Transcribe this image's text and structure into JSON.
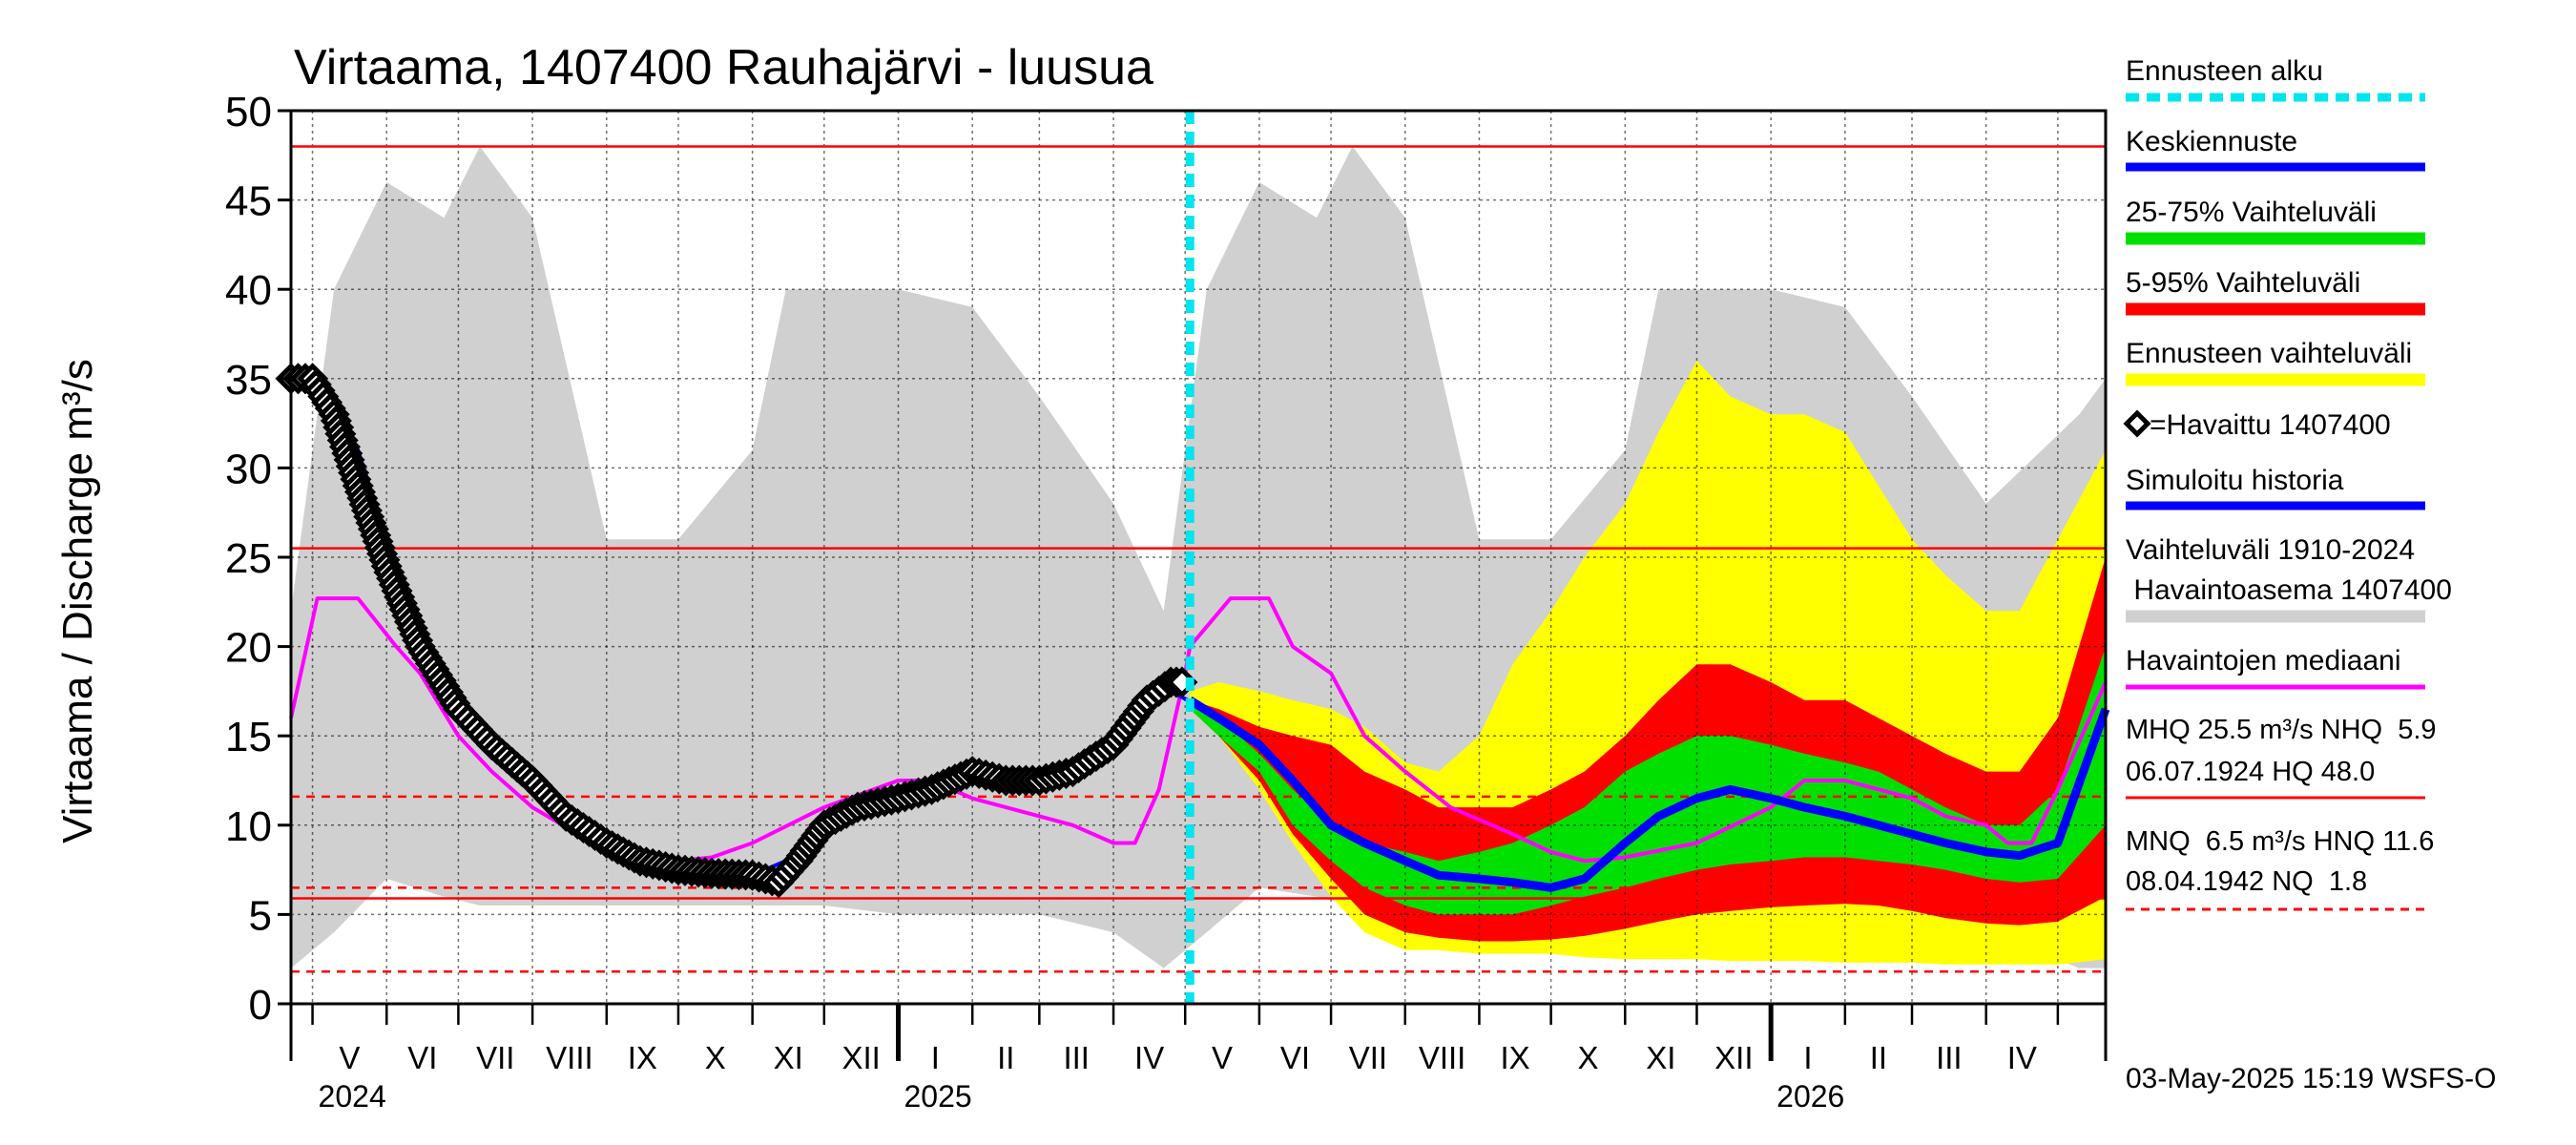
{
  "chart_data": {
    "type": "area",
    "title": "Virtaama, 1407400 Rauhajärvi - luusua",
    "ylabel": "Virtaama / Discharge   m³/s",
    "ylim": [
      0,
      50
    ],
    "yticks": [
      0,
      5,
      10,
      15,
      20,
      25,
      30,
      35,
      40,
      45,
      50
    ],
    "xlim": [
      "2024-04-22",
      "2026-05-21"
    ],
    "forecast_start": "2025-05-03",
    "months": [
      {
        "label": "V",
        "start": "2024-05-01"
      },
      {
        "label": "VI",
        "start": "2024-06-01"
      },
      {
        "label": "VII",
        "start": "2024-07-01"
      },
      {
        "label": "VIII",
        "start": "2024-08-01"
      },
      {
        "label": "IX",
        "start": "2024-09-01"
      },
      {
        "label": "X",
        "start": "2024-10-01"
      },
      {
        "label": "XI",
        "start": "2024-11-01"
      },
      {
        "label": "XII",
        "start": "2024-12-01"
      },
      {
        "label": "I",
        "start": "2025-01-01"
      },
      {
        "label": "II",
        "start": "2025-02-01"
      },
      {
        "label": "III",
        "start": "2025-03-01"
      },
      {
        "label": "IV",
        "start": "2025-04-01"
      },
      {
        "label": "V",
        "start": "2025-05-01"
      },
      {
        "label": "VI",
        "start": "2025-06-01"
      },
      {
        "label": "VII",
        "start": "2025-07-01"
      },
      {
        "label": "VIII",
        "start": "2025-08-01"
      },
      {
        "label": "IX",
        "start": "2025-09-01"
      },
      {
        "label": "X",
        "start": "2025-10-01"
      },
      {
        "label": "XI",
        "start": "2025-11-01"
      },
      {
        "label": "XII",
        "start": "2025-12-01"
      },
      {
        "label": "I",
        "start": "2026-01-01"
      },
      {
        "label": "II",
        "start": "2026-02-01"
      },
      {
        "label": "III",
        "start": "2026-03-01"
      },
      {
        "label": "IV",
        "start": "2026-04-01"
      },
      {
        "label": "",
        "start": "2026-05-01"
      }
    ],
    "years": [
      {
        "label": "2024",
        "date": "2024-05-01"
      },
      {
        "label": "2025",
        "date": "2025-01-01"
      },
      {
        "label": "2026",
        "date": "2026-01-01"
      }
    ],
    "reference_lines": [
      {
        "name": "HQ",
        "value": 48.0,
        "style": "solid"
      },
      {
        "name": "MHQ",
        "value": 25.5,
        "style": "solid"
      },
      {
        "name": "HNQ",
        "value": 11.6,
        "style": "dashed"
      },
      {
        "name": "MNQ",
        "value": 6.5,
        "style": "dashed"
      },
      {
        "name": "NHQ",
        "value": 5.9,
        "style": "solid"
      },
      {
        "name": "NQ",
        "value": 1.8,
        "style": "dashed"
      }
    ],
    "historical_range": {
      "x": [
        "2024-04-22",
        "2024-05-10",
        "2024-06-01",
        "2024-06-25",
        "2024-07-10",
        "2024-08-01",
        "2024-08-20",
        "2024-09-01",
        "2024-10-01",
        "2024-11-01",
        "2024-11-15",
        "2024-12-01",
        "2025-01-01",
        "2025-02-01",
        "2025-03-01",
        "2025-04-01",
        "2025-04-22",
        "2025-05-10",
        "2025-06-01",
        "2025-06-25",
        "2025-07-10",
        "2025-08-01",
        "2025-08-20",
        "2025-09-01",
        "2025-10-01",
        "2025-11-01",
        "2025-11-15",
        "2025-12-01",
        "2026-01-01",
        "2026-02-01",
        "2026-03-01",
        "2026-04-01",
        "2026-05-10",
        "2026-05-21"
      ],
      "upper": [
        22,
        40,
        46,
        44,
        48,
        44,
        33,
        26,
        26,
        31,
        40,
        40,
        40,
        39,
        34,
        28,
        22,
        40,
        46,
        44,
        48,
        44,
        33,
        26,
        26,
        31,
        40,
        40,
        40,
        39,
        34,
        28,
        33,
        35
      ],
      "lower": [
        2,
        4,
        7,
        6,
        5.5,
        5.5,
        5.5,
        5.5,
        5.5,
        5.5,
        5.5,
        5.5,
        5,
        5,
        5,
        4,
        2,
        4,
        6.5,
        6,
        5.5,
        5.5,
        5.5,
        5.5,
        5.5,
        5.5,
        5.5,
        5.5,
        5,
        5,
        5,
        4,
        2,
        2
      ]
    },
    "observed": {
      "name": "=Havaittu 1407400",
      "x": [
        "2024-04-22",
        "2024-05-01",
        "2024-05-10",
        "2024-05-20",
        "2024-06-01",
        "2024-06-15",
        "2024-07-01",
        "2024-07-15",
        "2024-08-01",
        "2024-08-15",
        "2024-09-01",
        "2024-09-15",
        "2024-10-01",
        "2024-10-15",
        "2024-11-01",
        "2024-11-12",
        "2024-11-20",
        "2024-12-01",
        "2024-12-15",
        "2025-01-01",
        "2025-01-15",
        "2025-02-01",
        "2025-02-15",
        "2025-03-01",
        "2025-03-15",
        "2025-04-01",
        "2025-04-15",
        "2025-04-25",
        "2025-05-02"
      ],
      "values": [
        35,
        35,
        33,
        29,
        24.5,
        20,
        16.5,
        14.5,
        12.5,
        10.5,
        9,
        8,
        7.5,
        7.3,
        7.2,
        6.8,
        8,
        10,
        11,
        11.5,
        12,
        13,
        12.5,
        12.5,
        13,
        14.5,
        17,
        18,
        18
      ]
    },
    "median": {
      "name": "Havaintojen mediaani",
      "x": [
        "2024-04-22",
        "2024-05-03",
        "2024-05-20",
        "2024-06-05",
        "2024-06-15",
        "2024-07-01",
        "2024-07-15",
        "2024-08-01",
        "2024-08-20",
        "2024-09-15",
        "2024-10-01",
        "2024-10-15",
        "2024-11-01",
        "2024-12-01",
        "2025-01-01",
        "2025-01-15",
        "2025-02-01",
        "2025-03-01",
        "2025-03-15",
        "2025-04-01",
        "2025-04-10",
        "2025-04-20",
        "2025-05-01",
        "2025-05-03",
        "2025-05-20",
        "2025-06-05",
        "2025-06-15",
        "2025-07-01",
        "2025-07-15",
        "2025-08-01",
        "2025-08-20",
        "2025-09-15",
        "2025-10-01",
        "2025-10-15",
        "2025-11-01",
        "2025-12-01",
        "2026-01-01",
        "2026-01-15",
        "2026-02-01",
        "2026-03-01",
        "2026-03-15",
        "2026-04-01",
        "2026-04-10",
        "2026-04-20",
        "2026-05-01",
        "2026-05-21"
      ],
      "values": [
        16,
        22.7,
        22.7,
        20,
        18.5,
        15,
        13,
        11,
        9.5,
        8.5,
        8,
        8.2,
        9,
        11,
        12.5,
        12.5,
        11.5,
        10.5,
        10,
        9,
        9,
        12,
        18.5,
        20,
        22.7,
        22.7,
        20,
        18.5,
        15,
        13,
        11,
        9.5,
        8.5,
        8,
        8.2,
        9,
        11,
        12.5,
        12.5,
        11.5,
        10.5,
        10,
        9,
        9,
        12,
        18
      ]
    },
    "forecast_x": [
      "2025-05-03",
      "2025-05-15",
      "2025-06-01",
      "2025-06-15",
      "2025-07-01",
      "2025-07-15",
      "2025-08-01",
      "2025-08-15",
      "2025-09-01",
      "2025-09-15",
      "2025-10-01",
      "2025-10-15",
      "2025-11-01",
      "2025-11-15",
      "2025-12-01",
      "2025-12-15",
      "2026-01-01",
      "2026-01-15",
      "2026-02-01",
      "2026-02-15",
      "2026-03-01",
      "2026-03-15",
      "2026-04-01",
      "2026-04-15",
      "2026-05-01",
      "2026-05-21"
    ],
    "forecast_range": {
      "name": "Ennusteen vaihteluväli",
      "upper": [
        17.5,
        18,
        17.5,
        17,
        16.5,
        15.5,
        13.5,
        13,
        15,
        19,
        22,
        25,
        28,
        32,
        36,
        34,
        33,
        33,
        32,
        29,
        26,
        24,
        22,
        22,
        26,
        31
      ],
      "lower": [
        16.5,
        15,
        12,
        9,
        6,
        4,
        3,
        3,
        2.8,
        2.8,
        2.8,
        2.6,
        2.5,
        2.5,
        2.5,
        2.4,
        2.4,
        2.4,
        2.3,
        2.3,
        2.3,
        2.2,
        2.2,
        2.2,
        2.2,
        2.5
      ]
    },
    "p5_95": {
      "name": "5-95% Vaihteluväli",
      "upper": [
        17,
        16.5,
        15.5,
        15,
        14.5,
        13,
        12,
        11,
        11,
        11,
        12,
        13,
        15,
        17,
        19,
        19,
        18,
        17,
        17,
        16,
        15,
        14,
        13,
        13,
        16,
        25
      ]
    },
    "p5_95_lower": [
      16.5,
      15,
      12.5,
      9.5,
      7,
      5,
      4,
      3.7,
      3.5,
      3.5,
      3.6,
      3.8,
      4.2,
      4.6,
      5,
      5.2,
      5.4,
      5.5,
      5.6,
      5.5,
      5.2,
      4.8,
      4.5,
      4.4,
      4.6,
      6
    ],
    "p25_75": {
      "name": "25-75% Vaihteluväli",
      "upper": [
        17,
        16,
        14,
        12,
        10,
        9,
        8.5,
        8,
        8.5,
        9,
        10,
        11,
        13,
        14,
        15,
        15,
        14.5,
        14,
        13.5,
        13,
        12,
        11,
        10,
        10,
        12,
        20
      ],
      "lower": [
        16.5,
        15,
        13,
        10,
        8,
        6.5,
        5.5,
        5,
        5,
        5,
        5.5,
        6,
        6.5,
        7,
        7.5,
        7.8,
        8,
        8.2,
        8.2,
        8,
        7.8,
        7.5,
        7,
        6.8,
        7,
        10
      ]
    },
    "mean_forecast": {
      "name": "Keskiennuste",
      "values": [
        17,
        16,
        14.5,
        12.5,
        10,
        9,
        8,
        7.2,
        7,
        6.8,
        6.5,
        7,
        9,
        10.5,
        11.5,
        12,
        11.5,
        11,
        10.5,
        10,
        9.5,
        9,
        8.5,
        8.3,
        9,
        16.5
      ]
    },
    "simulated_history": {
      "name": "Simuloitu historia",
      "x": [
        "2024-04-22",
        "2024-05-03",
        "2024-05-20",
        "2024-06-01",
        "2024-06-15",
        "2024-07-01",
        "2024-07-15",
        "2024-08-01",
        "2024-08-15",
        "2024-09-01",
        "2024-09-15",
        "2024-10-01",
        "2024-10-15",
        "2024-11-01",
        "2024-11-15",
        "2024-12-01",
        "2024-12-15",
        "2025-01-01",
        "2025-01-15",
        "2025-02-01",
        "2025-02-15",
        "2025-03-01",
        "2025-03-15",
        "2025-04-01",
        "2025-04-15",
        "2025-04-25",
        "2025-05-02"
      ],
      "values": [
        35,
        35,
        31,
        26,
        20.5,
        17,
        15,
        13,
        11,
        9.5,
        8.5,
        7.8,
        7.4,
        7.2,
        8,
        10,
        11,
        11.5,
        12,
        12.5,
        12.5,
        12.5,
        13,
        14,
        16.5,
        17.5,
        17
      ]
    }
  },
  "legend": {
    "forecast_start": "Ennusteen alku",
    "mean_forecast": "Keskiennuste",
    "p25_75": "25-75% Vaihteluväli",
    "p5_95": "5-95% Vaihteluväli",
    "forecast_range": "Ennusteen vaihteluväli",
    "observed": "=Havaittu 1407400",
    "simulated": "Simuloitu historia",
    "hist_range_1": "Vaihteluväli 1910-2024",
    "hist_range_2": " Havaintoasema 1407400",
    "median": "Havaintojen mediaani",
    "stats_1": "MHQ 25.5 m³/s NHQ  5.9",
    "stats_2": "06.07.1924 HQ 48.0",
    "stats_3": "MNQ  6.5 m³/s HNQ 11.6",
    "stats_4": "08.04.1942 NQ  1.8"
  },
  "footer": "03-May-2025 15:19 WSFS-O",
  "colors": {
    "historical_range": "#d0d0d0",
    "forecast_range": "#ffff00",
    "p5_95": "#ff0000",
    "p25_75": "#00e000",
    "mean_forecast": "#0000ff",
    "median": "#ff00ff",
    "observed": "#000000",
    "simulated": "#0000ff",
    "reference": "#ff0000",
    "forecast_start": "#00e5ee"
  }
}
